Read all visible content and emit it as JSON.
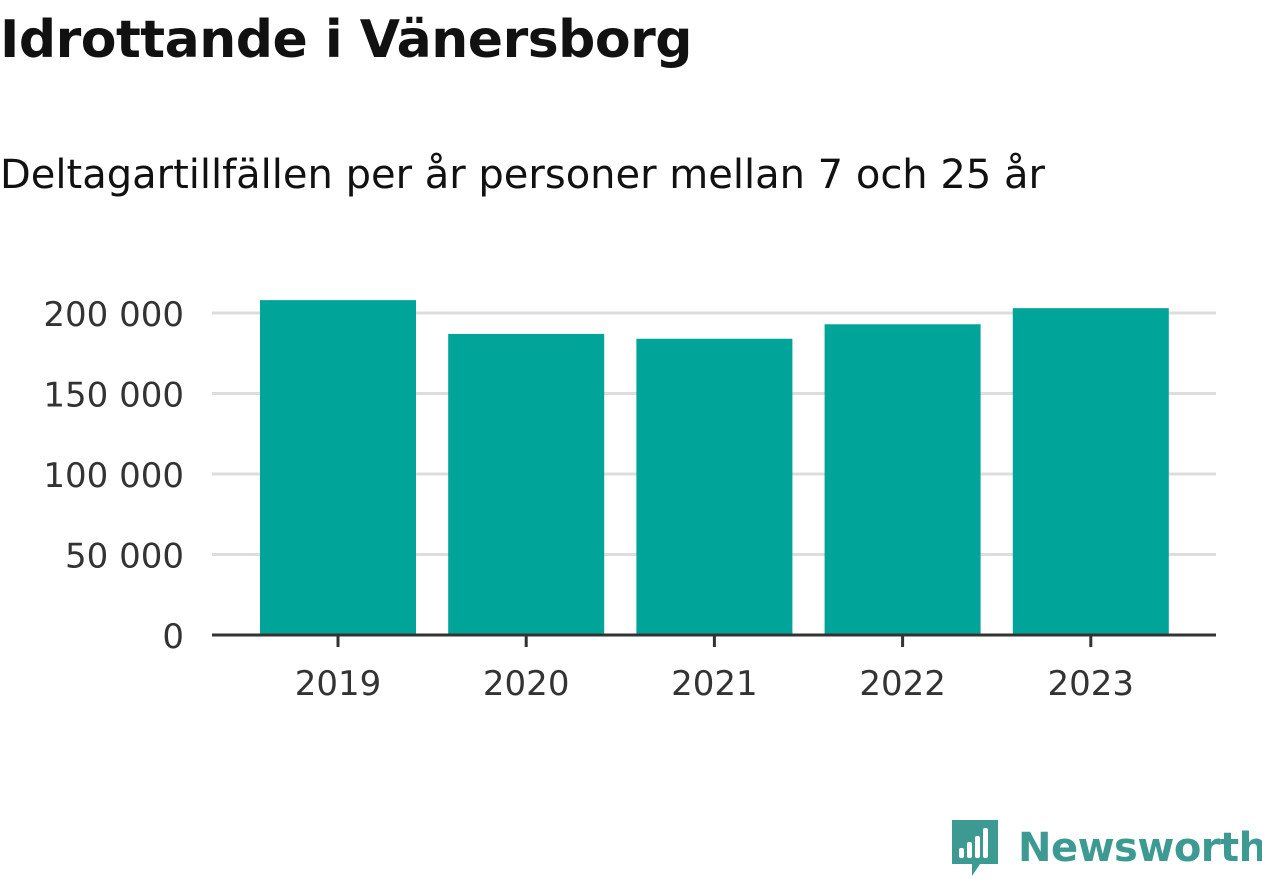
{
  "title": "Idrottande i Vänersborg",
  "subtitle": "Deltagartillfällen per år personer mellan 7 och 25 år",
  "brand": {
    "name": "Newsworthy",
    "icon": "newsworthy-logo-icon",
    "color": "#3d9a92"
  },
  "colors": {
    "bar": "#00a499",
    "grid": "#dddddd",
    "axis": "#333333",
    "text": "#333333"
  },
  "chart_data": {
    "type": "bar",
    "categories": [
      "2019",
      "2020",
      "2021",
      "2022",
      "2023"
    ],
    "values": [
      208000,
      187000,
      184000,
      193000,
      203000
    ],
    "ylim": [
      0,
      200000
    ],
    "yticks": [
      0,
      50000,
      100000,
      150000,
      200000
    ],
    "ytick_labels": [
      "0",
      "50 000",
      "100 000",
      "150 000",
      "200 000"
    ],
    "grid": true,
    "xlabel": "",
    "ylabel": ""
  }
}
